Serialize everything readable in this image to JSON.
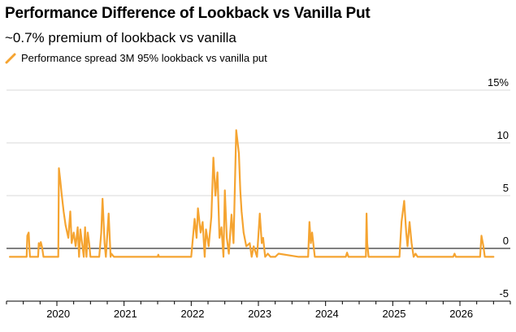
{
  "chart_data": {
    "type": "line",
    "title": "Performance Difference of Lookback vs Vanilla Put",
    "subtitle": "~0.7% premium of lookback vs vanilla",
    "xlabel": "",
    "ylabel": "",
    "ylim": [
      -5,
      15
    ],
    "y_ticks": [
      {
        "value": 15,
        "label": "15%"
      },
      {
        "value": 10,
        "label": "10"
      },
      {
        "value": 5,
        "label": "5"
      },
      {
        "value": 0,
        "label": "0"
      },
      {
        "value": -5,
        "label": "-5"
      }
    ],
    "x_ticks": [
      "2020",
      "2021",
      "2022",
      "2023",
      "2024",
      "2025",
      "2026"
    ],
    "xlim": [
      2019.25,
      2026.75
    ],
    "grid": true,
    "legend_position": "top-left",
    "series": [
      {
        "name": "Performance spread 3M 95% lookback vs vanilla put",
        "color": "#f5a431",
        "x": [
          2019.3,
          2019.55,
          2019.56,
          2019.58,
          2019.59,
          2019.6,
          2019.72,
          2019.73,
          2019.75,
          2019.76,
          2019.78,
          2019.8,
          2020.02,
          2020.03,
          2020.05,
          2020.07,
          2020.1,
          2020.13,
          2020.17,
          2020.2,
          2020.22,
          2020.25,
          2020.28,
          2020.31,
          2020.33,
          2020.35,
          2020.4,
          2020.42,
          2020.44,
          2020.46,
          2020.48,
          2020.5,
          2020.63,
          2020.66,
          2020.68,
          2020.71,
          2020.73,
          2020.77,
          2020.8,
          2020.81,
          2020.85,
          2021.0,
          2021.5,
          2021.51,
          2021.52,
          2021.55,
          2022.0,
          2022.05,
          2022.08,
          2022.1,
          2022.14,
          2022.17,
          2022.2,
          2022.22,
          2022.26,
          2022.3,
          2022.33,
          2022.36,
          2022.39,
          2022.42,
          2022.45,
          2022.48,
          2022.5,
          2022.53,
          2022.56,
          2022.6,
          2022.63,
          2022.67,
          2022.71,
          2022.73,
          2022.75,
          2022.78,
          2022.82,
          2022.87,
          2022.9,
          2022.93,
          2022.98,
          2023.02,
          2023.05,
          2023.07,
          2023.1,
          2023.14,
          2023.18,
          2023.22,
          2023.25,
          2023.3,
          2023.6,
          2023.74,
          2023.76,
          2023.78,
          2023.8,
          2023.82,
          2023.84,
          2024.2,
          2024.3,
          2024.32,
          2024.34,
          2024.36,
          2024.6,
          2024.61,
          2024.62,
          2024.64,
          2025.1,
          2025.13,
          2025.17,
          2025.2,
          2025.22,
          2025.25,
          2025.28,
          2025.31,
          2025.34,
          2025.37,
          2025.5,
          2025.9,
          2025.92,
          2025.94,
          2026.3,
          2026.32,
          2026.35,
          2026.37,
          2026.4,
          2026.45,
          2026.5
        ],
        "values": [
          -0.8,
          -0.8,
          1.2,
          1.5,
          0.2,
          -0.8,
          -0.8,
          0.5,
          0.2,
          0.6,
          0.1,
          -0.8,
          -0.8,
          7.6,
          6.5,
          5.2,
          3.5,
          2.2,
          1.0,
          3.5,
          0.5,
          1.5,
          0.2,
          2.0,
          -0.8,
          1.8,
          -0.8,
          2.0,
          -0.8,
          1.5,
          0.5,
          -0.8,
          -0.8,
          1.5,
          4.7,
          0.5,
          -0.8,
          3.3,
          -0.8,
          -0.5,
          -0.8,
          -0.8,
          -0.8,
          -0.6,
          -0.8,
          -0.8,
          -0.8,
          2.8,
          1.0,
          3.8,
          1.5,
          2.5,
          -0.8,
          1.8,
          0.2,
          3.0,
          8.6,
          5.0,
          7.2,
          1.0,
          2.0,
          -0.8,
          5.5,
          1.0,
          -0.5,
          3.2,
          0.5,
          11.2,
          9.0,
          5.5,
          3.5,
          1.5,
          0.2,
          0.5,
          -0.8,
          0.2,
          -0.8,
          3.3,
          0.5,
          1.0,
          -0.8,
          -0.5,
          -0.8,
          -0.8,
          -0.8,
          -0.5,
          -0.8,
          -0.8,
          2.5,
          0.5,
          1.5,
          0.3,
          -0.8,
          -0.8,
          -0.8,
          -0.4,
          -0.8,
          -0.8,
          -0.8,
          3.3,
          0.5,
          -0.8,
          -0.8,
          2.5,
          4.5,
          1.5,
          0.2,
          2.5,
          0.5,
          -0.8,
          -0.5,
          -0.8,
          -0.8,
          -0.8,
          -0.5,
          -0.8,
          -0.8,
          1.2,
          0.2,
          -0.8,
          -0.8,
          -0.8,
          -0.8
        ]
      }
    ]
  }
}
